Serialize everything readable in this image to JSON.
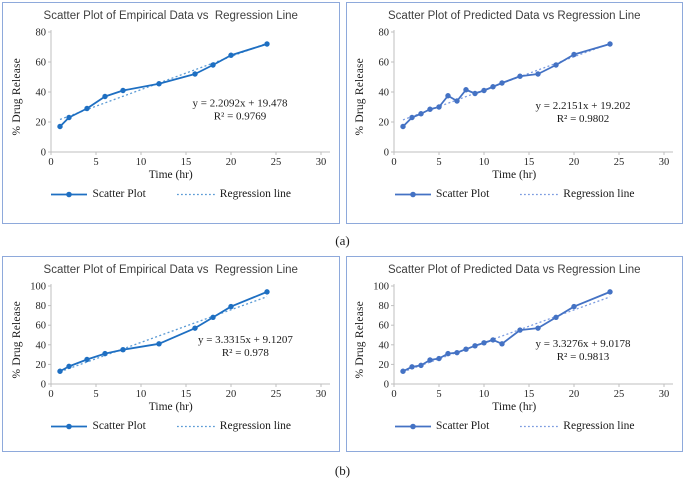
{
  "figure_labels": {
    "a": "(a)",
    "b": "(b)"
  },
  "colors": {
    "panel_border": "#8ea9db",
    "axis_line": "#bfbfbf",
    "tick_text": "#262626",
    "title_text": "#3f3f3f",
    "equation_text": "#1a1a1a"
  },
  "chart_data": [
    {
      "type": "scatter",
      "panel": "top-left",
      "title": "Scatter Plot of Empirical Data vs  Regression Line",
      "xlabel": "Time (hr)",
      "ylabel": "% Drug Release",
      "xlim": [
        0,
        30
      ],
      "ylim": [
        0,
        80
      ],
      "xticks": [
        0,
        5,
        10,
        15,
        20,
        25,
        30
      ],
      "yticks": [
        0,
        20,
        40,
        60,
        80
      ],
      "grid": false,
      "legend_position": "bottom",
      "legend": [
        "Scatter Plot",
        "Regression line"
      ],
      "x": [
        1,
        2,
        4,
        6,
        8,
        12,
        16,
        18,
        20,
        24
      ],
      "y": [
        17,
        23,
        29,
        37,
        41,
        45.5,
        52,
        58,
        64.5,
        72
      ],
      "regression": {
        "slope": 2.2092,
        "intercept": 19.478,
        "x_start": 1,
        "x_end": 24,
        "equation": "y = 2.2092x + 19.478",
        "r2": "R² = 0.9769"
      },
      "colors": {
        "line": "#1e6fc2",
        "regression": "#5b9bd5"
      },
      "eq_pos": {
        "x_frac": 0.7,
        "y_frac": 0.62
      }
    },
    {
      "type": "scatter",
      "panel": "top-right",
      "title": "Scatter Plot of Predicted Data vs Regression Line",
      "xlabel": "Time (hr)",
      "ylabel": "% Drug Release",
      "xlim": [
        0,
        30
      ],
      "ylim": [
        0,
        80
      ],
      "xticks": [
        0,
        5,
        10,
        15,
        20,
        25,
        30
      ],
      "yticks": [
        0,
        20,
        40,
        60,
        80
      ],
      "grid": false,
      "legend_position": "bottom",
      "legend": [
        "Scatter Plot",
        "Regression line"
      ],
      "x": [
        1,
        2,
        3,
        4,
        5,
        6,
        7,
        8,
        9,
        10,
        11,
        12,
        14,
        16,
        18,
        20,
        24
      ],
      "y": [
        17,
        23,
        25.5,
        28.5,
        30,
        37.5,
        34,
        41.5,
        39,
        41,
        43.5,
        46,
        50.5,
        52,
        58,
        65,
        72
      ],
      "regression": {
        "slope": 2.2151,
        "intercept": 19.202,
        "x_start": 1,
        "x_end": 24,
        "equation": "y = 2.2151x + 19.202",
        "r2": "R² = 0.9802"
      },
      "colors": {
        "line": "#4472c4",
        "regression": "#7b9be0"
      },
      "eq_pos": {
        "x_frac": 0.7,
        "y_frac": 0.64
      }
    },
    {
      "type": "scatter",
      "panel": "bottom-left",
      "title": "Scatter Plot of Empirical Data vs  Regression Line",
      "xlabel": "Time (hr)",
      "ylabel": "% Drug Release",
      "xlim": [
        0,
        30
      ],
      "ylim": [
        0,
        100
      ],
      "xticks": [
        0,
        5,
        10,
        15,
        20,
        25,
        30
      ],
      "yticks": [
        0,
        20,
        40,
        60,
        80,
        100
      ],
      "grid": false,
      "legend_position": "bottom",
      "legend": [
        "Scatter Plot",
        "Regression line"
      ],
      "x": [
        1,
        2,
        4,
        6,
        8,
        12,
        16,
        18,
        20,
        24
      ],
      "y": [
        13,
        18,
        25,
        31,
        35,
        41,
        57,
        68,
        79,
        94
      ],
      "regression": {
        "slope": 3.3315,
        "intercept": 9.1207,
        "x_start": 1,
        "x_end": 24,
        "equation": "y = 3.3315x + 9.1207",
        "r2": "R² = 0.978"
      },
      "colors": {
        "line": "#1e6fc2",
        "regression": "#5b9bd5"
      },
      "eq_pos": {
        "x_frac": 0.72,
        "y_frac": 0.58
      }
    },
    {
      "type": "scatter",
      "panel": "bottom-right",
      "title": "Scatter Plot of Predicted Data vs Regression Line",
      "xlabel": "Time (hr)",
      "ylabel": "% Drug Release",
      "xlim": [
        0,
        30
      ],
      "ylim": [
        0,
        100
      ],
      "xticks": [
        0,
        5,
        10,
        15,
        20,
        25,
        30
      ],
      "yticks": [
        0,
        20,
        40,
        60,
        80,
        100
      ],
      "grid": false,
      "legend_position": "bottom",
      "legend": [
        "Scatter Plot",
        "Regression line"
      ],
      "x": [
        1,
        2,
        3,
        4,
        5,
        6,
        7,
        8,
        9,
        10,
        11,
        12,
        14,
        16,
        18,
        20,
        24
      ],
      "y": [
        13,
        17.5,
        19,
        24.5,
        26,
        31,
        32,
        35.5,
        39,
        42,
        45,
        41,
        55,
        57,
        68,
        79,
        94
      ],
      "regression": {
        "slope": 3.3276,
        "intercept": 9.0178,
        "x_start": 1,
        "x_end": 24,
        "equation": "y = 3.3276x + 9.0178",
        "r2": "R² = 0.9813"
      },
      "colors": {
        "line": "#4472c4",
        "regression": "#7b9be0"
      },
      "eq_pos": {
        "x_frac": 0.7,
        "y_frac": 0.62
      }
    }
  ]
}
